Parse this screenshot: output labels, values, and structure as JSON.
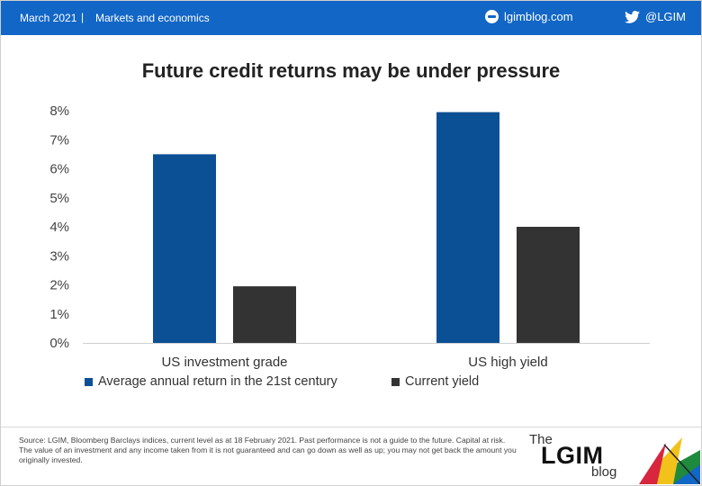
{
  "header": {
    "date": "March 2021",
    "separator": "|",
    "topic": "Markets and economics",
    "site": "lgimblog.com",
    "twitter": "@LGIM",
    "background_color": "#1266c6",
    "site_icon": "globe-icon",
    "twitter_icon": "twitter-bird-icon"
  },
  "chart_data": {
    "type": "bar",
    "title": "Future credit returns may be under pressure",
    "categories": [
      "US investment grade",
      "US high yield"
    ],
    "series": [
      {
        "name": "Average annual return in the 21st century",
        "values": [
          6.5,
          7.95
        ],
        "color": "#0b4f95"
      },
      {
        "name": "Current yield",
        "values": [
          1.95,
          4.0
        ],
        "color": "#333333"
      }
    ],
    "ylim": [
      0,
      8
    ],
    "yticks": [
      "0%",
      "1%",
      "2%",
      "3%",
      "4%",
      "5%",
      "6%",
      "7%",
      "8%"
    ],
    "xlabel": "",
    "ylabel": "",
    "grid": false,
    "legend_position": "bottom-left"
  },
  "footer": {
    "source": "Source: LGIM, Bloomberg Barclays indices, current level as at 18 February 2021. Past performance is not a guide to the future. Capital at risk. The value of an investment and any income taken from it is not guaranteed and can go down as well as up; you may not get back the amount you originally invested.",
    "logo_the": "The",
    "logo_name": "LGIM",
    "logo_blog": "blog"
  }
}
